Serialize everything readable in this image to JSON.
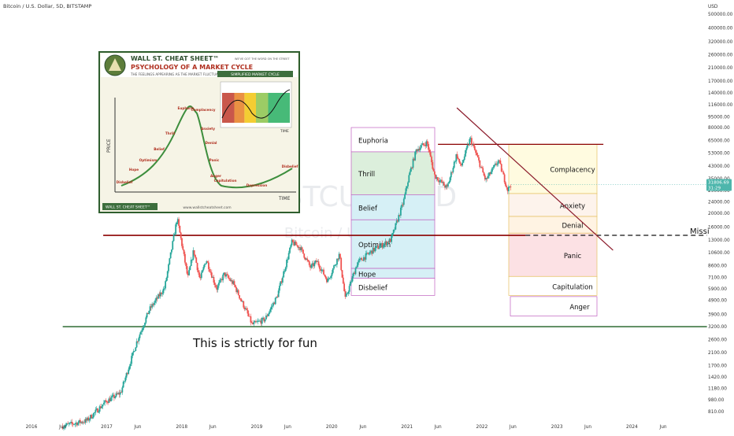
{
  "header": {
    "symbol_text": "Bitcoin / U.S. Dollar, 5D, BITSTAMP"
  },
  "watermark": {
    "ticker": "BTCUSD, 5D",
    "name": "Bitcoin / U.S. Dollar"
  },
  "annotation": {
    "fun_text": "This is strictly for fun",
    "missing_text": "Missi"
  },
  "price_label": {
    "value": "31806.69",
    "countdown": "31:29"
  },
  "inset": {
    "title_line1": "WALL ST. CHEAT SHEET™",
    "title_line2": "PSYCHOLOGY OF A MARKET CYCLE",
    "tagline": "WE'VE GOT THE WORD ON THE STREET",
    "subtitle": "THE FEELINGS APPEARING AS THE MARKET FLUCTUATES",
    "simplified": "SIMPLIFIED MARKET CYCLE",
    "price_axis": "PRICE",
    "time_axis": "TIME",
    "footer_logo": "WALL ST. CHEAT SHEET™",
    "url": "www.wallstcheatsheet.com",
    "stages": [
      "Disbelief",
      "Hope",
      "Optimism",
      "Belief",
      "Thrill",
      "Euphoria",
      "Complacency",
      "Anxiety",
      "Denial",
      "Panic",
      "Anger",
      "Capitulation",
      "Depression",
      "Disbelief"
    ]
  },
  "colors": {
    "candle_up": "#26a69a",
    "candle_down": "#ef5350",
    "support_line": "#1b5e20",
    "resistance_line": "#8b0000",
    "trend_line": "#8b1a2a",
    "price_tag": "#4db6ac"
  },
  "chart_data": {
    "type": "candlestick",
    "title": "Bitcoin / U.S. Dollar, 5D, BITSTAMP",
    "y_scale": "log",
    "y_unit": "USD",
    "y_ticks": [
      500000,
      400000,
      320000,
      260000,
      210000,
      170000,
      140000,
      116000,
      95000,
      80000,
      65000,
      53000,
      43000,
      35000,
      29000,
      24000,
      20000,
      16000,
      13000,
      10600,
      8600,
      7100,
      5900,
      4900,
      3900,
      3200,
      2600,
      2100,
      1700,
      1420,
      1180,
      980,
      810
    ],
    "y_tick_labels": [
      "500000.00",
      "400000.00",
      "320000.00",
      "260000.00",
      "210000.00",
      "170000.00",
      "140000.00",
      "116000.00",
      "95000.00",
      "80000.00",
      "65000.00",
      "53000.00",
      "43000.00",
      "35000.00",
      "29000.00",
      "24000.00",
      "20000.00",
      "16000.00",
      "13000.00",
      "10600.00",
      "8600.00",
      "7100.00",
      "5900.00",
      "4900.00",
      "3900.00",
      "3200.00",
      "2600.00",
      "2100.00",
      "1700.00",
      "1420.00",
      "1180.00",
      "980.00",
      "810.00"
    ],
    "x_tick_labels": [
      "2016",
      "Jun",
      "2017",
      "Jun",
      "2018",
      "Jun",
      "2019",
      "Jun",
      "2020",
      "Jun",
      "2021",
      "Jun",
      "2022",
      "Jun",
      "2023",
      "Jun",
      "2024",
      "Jun"
    ],
    "x_tick_dates": [
      "2016-01-01",
      "2016-06-01",
      "2017-01-01",
      "2017-06-01",
      "2018-01-01",
      "2018-06-01",
      "2019-01-01",
      "2019-06-01",
      "2020-01-01",
      "2020-06-01",
      "2021-01-01",
      "2021-06-01",
      "2022-01-01",
      "2022-06-01",
      "2023-01-01",
      "2023-06-01",
      "2024-01-01",
      "2024-06-01"
    ],
    "price_path": [
      [
        "2016-06-01",
        640
      ],
      [
        "2016-10-01",
        700
      ],
      [
        "2017-01-01",
        950
      ],
      [
        "2017-03-15",
        1100
      ],
      [
        "2017-06-01",
        2500
      ],
      [
        "2017-08-01",
        4200
      ],
      [
        "2017-10-15",
        6000
      ],
      [
        "2017-12-15",
        18500
      ],
      [
        "2018-02-05",
        7000
      ],
      [
        "2018-03-05",
        11000
      ],
      [
        "2018-04-05",
        6800
      ],
      [
        "2018-05-05",
        9500
      ],
      [
        "2018-06-25",
        5900
      ],
      [
        "2018-08-01",
        7500
      ],
      [
        "2018-09-15",
        6400
      ],
      [
        "2018-11-20",
        4000
      ],
      [
        "2018-12-15",
        3300
      ],
      [
        "2019-02-15",
        3600
      ],
      [
        "2019-04-15",
        5200
      ],
      [
        "2019-06-26",
        12500
      ],
      [
        "2019-08-05",
        11500
      ],
      [
        "2019-09-25",
        8300
      ],
      [
        "2019-10-26",
        9200
      ],
      [
        "2019-12-17",
        6700
      ],
      [
        "2020-02-12",
        10300
      ],
      [
        "2020-03-12",
        5000
      ],
      [
        "2020-05-10",
        9000
      ],
      [
        "2020-07-25",
        11000
      ],
      [
        "2020-10-20",
        13000
      ],
      [
        "2020-12-20",
        24000
      ],
      [
        "2021-01-15",
        36000
      ],
      [
        "2021-02-21",
        56000
      ],
      [
        "2021-04-14",
        63000
      ],
      [
        "2021-05-20",
        37000
      ],
      [
        "2021-07-20",
        30000
      ],
      [
        "2021-09-05",
        52000
      ],
      [
        "2021-09-25",
        42000
      ],
      [
        "2021-11-10",
        67000
      ],
      [
        "2021-12-20",
        47000
      ],
      [
        "2022-01-24",
        34000
      ],
      [
        "2022-03-28",
        47000
      ],
      [
        "2022-05-12",
        29000
      ],
      [
        "2022-05-24",
        31806
      ]
    ],
    "current_price": 31806.69,
    "horizontal_lines": [
      {
        "name": "support",
        "price": 3200,
        "from": "2016-06-01",
        "to": "2024-12-31"
      },
      {
        "name": "resistance",
        "price": 14000,
        "from": "2016-12-15",
        "to": "2022-08-01"
      },
      {
        "name": "missing-dashed",
        "price": 14000,
        "from": "2022-08-01",
        "to": "2024-12-31"
      },
      {
        "name": "top-range",
        "price": 61000,
        "from": "2021-06-01",
        "to": "2023-08-15"
      }
    ],
    "trend_line": {
      "start": [
        "2021-09-01",
        110000
      ],
      "end": [
        "2023-10-01",
        11000
      ]
    },
    "zones_left": [
      {
        "label": "Euphoria",
        "top": 80000,
        "bottom": 54000,
        "color": "#ffffff"
      },
      {
        "label": "Thrill",
        "top": 54000,
        "bottom": 27000,
        "color": "#dcefdc"
      },
      {
        "label": "Belief",
        "top": 27000,
        "bottom": 18000,
        "color": "#d6f0f6"
      },
      {
        "label": "Optimism",
        "top": 18000,
        "bottom": 8200,
        "color": "#d6f0f6"
      },
      {
        "label": "Hope",
        "top": 8200,
        "bottom": 7000,
        "color": "#d6f0f6"
      },
      {
        "label": "Disbelief",
        "top": 7000,
        "bottom": 5300,
        "color": "#ffffff"
      }
    ],
    "zones_right": [
      {
        "label": "Complacency",
        "top": 61000,
        "bottom": 27500,
        "color": "#fffbe0"
      },
      {
        "label": "Anxiety",
        "top": 27500,
        "bottom": 19000,
        "color": "#fdf3ec"
      },
      {
        "label": "Denial",
        "top": 19000,
        "bottom": 14500,
        "color": "#fff3e3"
      },
      {
        "label": "Panic",
        "top": 14500,
        "bottom": 7200,
        "color": "#fce1e4"
      },
      {
        "label": "Capitulation",
        "top": 7200,
        "bottom": 5300,
        "color": "#ffffff"
      },
      {
        "label": "Anger",
        "top": 5200,
        "bottom": 3800,
        "color": "#ffffff"
      }
    ]
  }
}
